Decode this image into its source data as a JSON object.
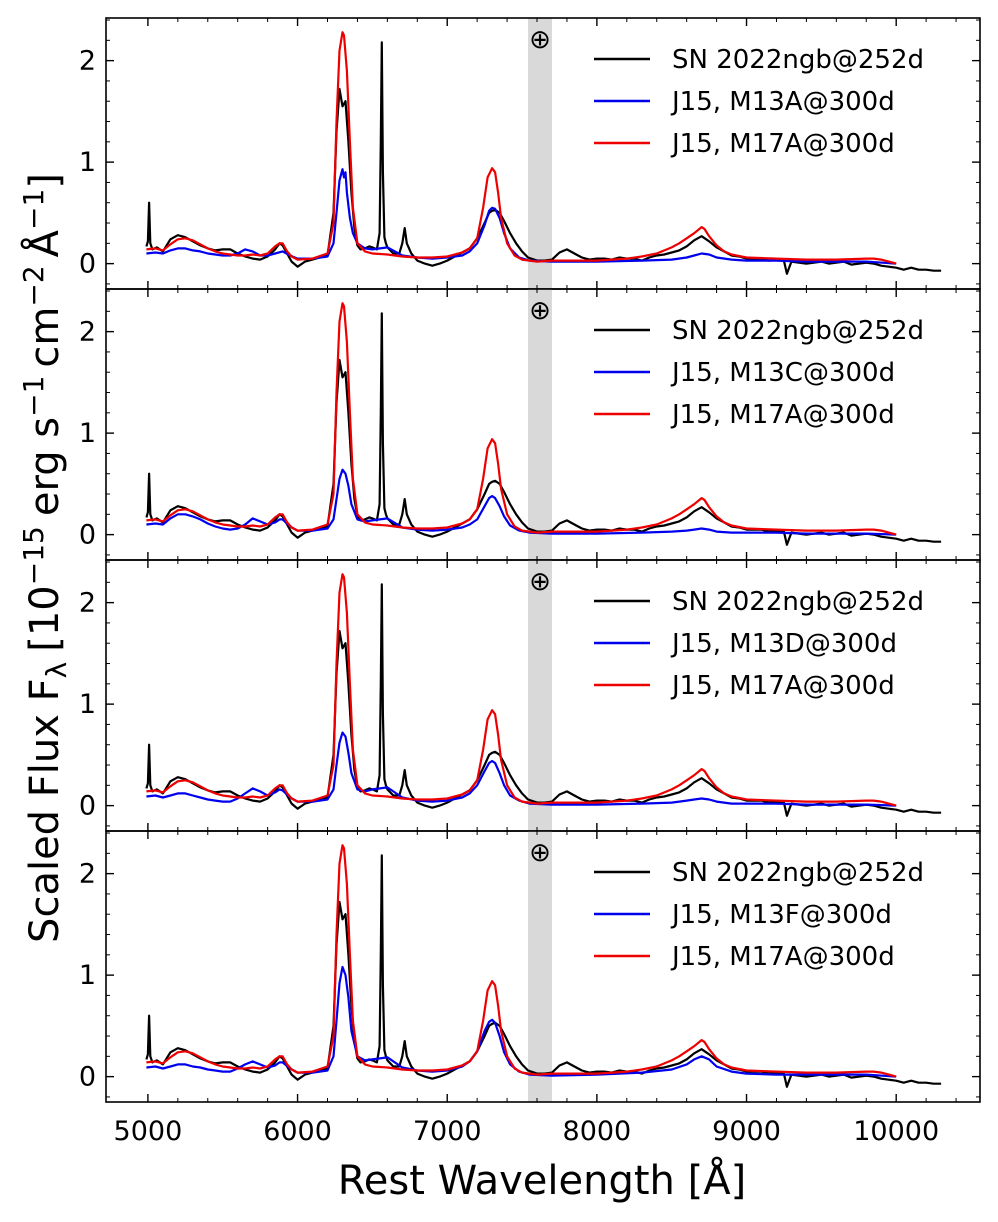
{
  "chart_data": {
    "type": "line",
    "xlabel": "Rest Wavelength [Å]",
    "ylabel_prefix": "Scaled Flux F",
    "ylabel_sub": "λ",
    "ylabel_units": "[10",
    "ylabel_exp1": "−15",
    "ylabel_erg": "erg s",
    "ylabel_exp2": "−1",
    "ylabel_cm": "cm",
    "ylabel_exp3": "−2",
    "ylabel_ang": "Å",
    "ylabel_exp4": "−1",
    "ylabel_close": "]",
    "xlim": [
      4720,
      10560
    ],
    "ylim": [
      -0.25,
      2.42
    ],
    "xticks": [
      5000,
      6000,
      7000,
      8000,
      9000,
      10000
    ],
    "xtick_labels": [
      "5000",
      "6000",
      "7000",
      "8000",
      "9000",
      "10000"
    ],
    "yticks": [
      0,
      1,
      2
    ],
    "ytick_labels": [
      "0",
      "1",
      "2"
    ],
    "telluric_band": [
      7540,
      7700
    ],
    "telluric_symbol": "⊕",
    "colors": {
      "observed": "#000000",
      "model_blue": "#0000ee",
      "model_red": "#ee0000",
      "band": "#d9d9d9"
    },
    "observed": {
      "name": "SN 2022ngb@252d",
      "x": [
        4990,
        5000,
        5008,
        5016,
        5030,
        5060,
        5100,
        5150,
        5200,
        5250,
        5300,
        5350,
        5400,
        5450,
        5500,
        5550,
        5600,
        5650,
        5700,
        5750,
        5800,
        5850,
        5880,
        5900,
        5930,
        5960,
        6000,
        6050,
        6100,
        6150,
        6200,
        6240,
        6260,
        6280,
        6300,
        6320,
        6340,
        6360,
        6380,
        6400,
        6420,
        6450,
        6480,
        6500,
        6530,
        6548,
        6556,
        6563,
        6570,
        6580,
        6590,
        6600,
        6640,
        6680,
        6700,
        6716,
        6730,
        6760,
        6800,
        6850,
        6900,
        6950,
        7000,
        7050,
        7100,
        7150,
        7200,
        7250,
        7280,
        7300,
        7320,
        7350,
        7380,
        7420,
        7460,
        7500,
        7540,
        7600,
        7650,
        7700,
        7750,
        7800,
        7850,
        7900,
        7950,
        8000,
        8050,
        8100,
        8150,
        8200,
        8250,
        8300,
        8350,
        8400,
        8450,
        8500,
        8550,
        8600,
        8650,
        8700,
        8750,
        8800,
        8850,
        8900,
        8950,
        9000,
        9050,
        9100,
        9150,
        9200,
        9250,
        9270,
        9300,
        9350,
        9400,
        9450,
        9500,
        9550,
        9600,
        9650,
        9700,
        9750,
        9800,
        9850,
        9900,
        9950,
        10000,
        10050,
        10100,
        10150,
        10200,
        10250,
        10300
      ],
      "y": [
        0.17,
        0.22,
        0.6,
        0.2,
        0.14,
        0.16,
        0.12,
        0.24,
        0.28,
        0.26,
        0.22,
        0.18,
        0.15,
        0.13,
        0.14,
        0.14,
        0.1,
        0.07,
        0.05,
        0.04,
        0.07,
        0.14,
        0.2,
        0.18,
        0.1,
        0.02,
        -0.03,
        0.02,
        0.04,
        0.06,
        0.08,
        0.5,
        1.3,
        1.72,
        1.55,
        1.6,
        1.2,
        0.7,
        0.35,
        0.18,
        0.14,
        0.15,
        0.17,
        0.16,
        0.14,
        0.3,
        1.2,
        2.18,
        0.9,
        0.26,
        0.2,
        0.16,
        0.1,
        0.1,
        0.2,
        0.35,
        0.2,
        0.1,
        0.03,
        0.0,
        -0.02,
        0.0,
        0.03,
        0.07,
        0.11,
        0.15,
        0.25,
        0.4,
        0.5,
        0.52,
        0.53,
        0.5,
        0.42,
        0.3,
        0.2,
        0.12,
        0.06,
        0.03,
        0.03,
        0.04,
        0.11,
        0.14,
        0.1,
        0.06,
        0.04,
        0.05,
        0.05,
        0.04,
        0.06,
        0.05,
        0.05,
        0.03,
        0.06,
        0.08,
        0.09,
        0.11,
        0.13,
        0.17,
        0.23,
        0.27,
        0.22,
        0.16,
        0.12,
        0.08,
        0.07,
        0.05,
        0.05,
        0.05,
        0.03,
        0.04,
        0.03,
        -0.1,
        0.02,
        0.01,
        0.0,
        0.01,
        0.02,
        0.0,
        0.01,
        0.02,
        -0.01,
        0.0,
        0.01,
        0.0,
        -0.02,
        -0.03,
        -0.04,
        -0.06,
        -0.04,
        -0.06,
        -0.06,
        -0.07,
        -0.07
      ]
    },
    "red_model": {
      "name": "J15, M17A@300d",
      "x": [
        4990,
        5050,
        5100,
        5150,
        5200,
        5250,
        5300,
        5350,
        5400,
        5450,
        5500,
        5550,
        5600,
        5650,
        5700,
        5750,
        5800,
        5850,
        5880,
        5900,
        5930,
        5960,
        6000,
        6100,
        6200,
        6240,
        6260,
        6280,
        6300,
        6310,
        6330,
        6350,
        6370,
        6400,
        6450,
        6500,
        6600,
        6700,
        6800,
        6900,
        7000,
        7100,
        7150,
        7200,
        7240,
        7270,
        7300,
        7320,
        7340,
        7360,
        7400,
        7450,
        7500,
        7600,
        7700,
        7800,
        7900,
        8000,
        8100,
        8200,
        8300,
        8400,
        8500,
        8550,
        8600,
        8650,
        8700,
        8720,
        8750,
        8800,
        8850,
        8900,
        9000,
        9200,
        9400,
        9600,
        9800,
        9850,
        9900,
        10000
      ],
      "y": [
        0.14,
        0.15,
        0.13,
        0.19,
        0.24,
        0.25,
        0.23,
        0.19,
        0.15,
        0.12,
        0.1,
        0.09,
        0.08,
        0.08,
        0.09,
        0.08,
        0.1,
        0.17,
        0.2,
        0.2,
        0.12,
        0.07,
        0.04,
        0.05,
        0.1,
        0.4,
        1.4,
        2.1,
        2.28,
        2.25,
        1.9,
        1.2,
        0.55,
        0.2,
        0.12,
        0.1,
        0.09,
        0.07,
        0.06,
        0.06,
        0.07,
        0.11,
        0.15,
        0.25,
        0.55,
        0.85,
        0.94,
        0.9,
        0.7,
        0.45,
        0.2,
        0.08,
        0.04,
        0.02,
        0.03,
        0.03,
        0.03,
        0.03,
        0.04,
        0.05,
        0.07,
        0.1,
        0.16,
        0.2,
        0.25,
        0.3,
        0.36,
        0.34,
        0.27,
        0.18,
        0.12,
        0.09,
        0.06,
        0.05,
        0.04,
        0.04,
        0.05,
        0.05,
        0.04,
        0.0
      ]
    },
    "panels": [
      {
        "legend": [
          "SN 2022ngb@252d",
          "J15, M13A@300d",
          "J15, M17A@300d"
        ],
        "blue_model": {
          "name": "J15, M13A@300d",
          "x": [
            4990,
            5050,
            5100,
            5150,
            5200,
            5250,
            5300,
            5350,
            5400,
            5450,
            5500,
            5550,
            5600,
            5650,
            5700,
            5750,
            5800,
            5850,
            5900,
            5950,
            6000,
            6100,
            6200,
            6240,
            6260,
            6280,
            6300,
            6310,
            6320,
            6330,
            6350,
            6370,
            6400,
            6450,
            6500,
            6550,
            6600,
            6700,
            6800,
            6900,
            7000,
            7100,
            7150,
            7200,
            7250,
            7280,
            7300,
            7320,
            7350,
            7380,
            7420,
            7480,
            7550,
            7700,
            8000,
            8300,
            8500,
            8600,
            8650,
            8700,
            8750,
            8800,
            8900,
            9000,
            9200,
            9400,
            9600,
            9800,
            10000
          ],
          "y": [
            0.1,
            0.11,
            0.1,
            0.13,
            0.15,
            0.15,
            0.13,
            0.12,
            0.1,
            0.09,
            0.08,
            0.08,
            0.1,
            0.14,
            0.12,
            0.08,
            0.08,
            0.1,
            0.12,
            0.08,
            0.05,
            0.05,
            0.07,
            0.2,
            0.5,
            0.82,
            0.93,
            0.85,
            0.9,
            0.7,
            0.45,
            0.3,
            0.2,
            0.15,
            0.14,
            0.15,
            0.16,
            0.08,
            0.06,
            0.05,
            0.06,
            0.08,
            0.12,
            0.2,
            0.38,
            0.52,
            0.55,
            0.54,
            0.45,
            0.3,
            0.15,
            0.06,
            0.03,
            0.02,
            0.02,
            0.03,
            0.04,
            0.06,
            0.08,
            0.1,
            0.09,
            0.06,
            0.04,
            0.03,
            0.03,
            0.02,
            0.02,
            0.02,
            0.0
          ]
        }
      },
      {
        "legend": [
          "SN 2022ngb@252d",
          "J15, M13C@300d",
          "J15, M17A@300d"
        ],
        "blue_model": {
          "name": "J15, M13C@300d",
          "x": [
            4990,
            5050,
            5100,
            5150,
            5200,
            5250,
            5300,
            5350,
            5400,
            5450,
            5500,
            5550,
            5600,
            5650,
            5700,
            5750,
            5800,
            5850,
            5880,
            5900,
            5950,
            6000,
            6100,
            6200,
            6240,
            6260,
            6280,
            6300,
            6320,
            6340,
            6360,
            6400,
            6450,
            6500,
            6550,
            6600,
            6700,
            6800,
            6900,
            7000,
            7100,
            7150,
            7200,
            7250,
            7280,
            7300,
            7320,
            7350,
            7380,
            7420,
            7480,
            7550,
            7700,
            8000,
            8300,
            8500,
            8600,
            8650,
            8700,
            8750,
            8800,
            8900,
            9000,
            9200,
            9400,
            9600,
            9800,
            10000
          ],
          "y": [
            0.1,
            0.11,
            0.1,
            0.16,
            0.2,
            0.2,
            0.18,
            0.15,
            0.11,
            0.08,
            0.06,
            0.05,
            0.06,
            0.1,
            0.16,
            0.13,
            0.1,
            0.12,
            0.15,
            0.15,
            0.08,
            0.04,
            0.04,
            0.06,
            0.15,
            0.35,
            0.55,
            0.64,
            0.6,
            0.48,
            0.3,
            0.15,
            0.13,
            0.14,
            0.15,
            0.16,
            0.07,
            0.05,
            0.04,
            0.05,
            0.07,
            0.1,
            0.15,
            0.28,
            0.36,
            0.38,
            0.36,
            0.28,
            0.18,
            0.09,
            0.04,
            0.02,
            0.01,
            0.01,
            0.02,
            0.03,
            0.04,
            0.05,
            0.06,
            0.05,
            0.03,
            0.02,
            0.02,
            0.02,
            0.01,
            0.01,
            0.01,
            0.0
          ]
        }
      },
      {
        "legend": [
          "SN 2022ngb@252d",
          "J15, M13D@300d",
          "J15, M17A@300d"
        ],
        "blue_model": {
          "name": "J15, M13D@300d",
          "x": [
            4990,
            5050,
            5100,
            5150,
            5200,
            5250,
            5300,
            5350,
            5400,
            5450,
            5500,
            5550,
            5600,
            5650,
            5700,
            5750,
            5800,
            5850,
            5880,
            5900,
            5950,
            6000,
            6100,
            6200,
            6240,
            6260,
            6280,
            6300,
            6320,
            6340,
            6360,
            6400,
            6450,
            6500,
            6550,
            6600,
            6700,
            6800,
            6900,
            7000,
            7100,
            7150,
            7200,
            7250,
            7280,
            7300,
            7320,
            7350,
            7380,
            7420,
            7480,
            7550,
            7700,
            8000,
            8300,
            8500,
            8600,
            8650,
            8700,
            8750,
            8800,
            8900,
            9000,
            9200,
            9400,
            9600,
            9800,
            10000
          ],
          "y": [
            0.09,
            0.1,
            0.08,
            0.1,
            0.12,
            0.12,
            0.1,
            0.08,
            0.06,
            0.05,
            0.04,
            0.04,
            0.07,
            0.12,
            0.17,
            0.14,
            0.1,
            0.13,
            0.16,
            0.15,
            0.08,
            0.04,
            0.04,
            0.06,
            0.16,
            0.4,
            0.62,
            0.72,
            0.68,
            0.52,
            0.32,
            0.16,
            0.14,
            0.16,
            0.17,
            0.18,
            0.08,
            0.05,
            0.04,
            0.05,
            0.08,
            0.12,
            0.2,
            0.34,
            0.42,
            0.44,
            0.42,
            0.32,
            0.2,
            0.1,
            0.05,
            0.02,
            0.01,
            0.01,
            0.02,
            0.03,
            0.05,
            0.06,
            0.07,
            0.06,
            0.04,
            0.02,
            0.02,
            0.02,
            0.01,
            0.01,
            0.01,
            0.0
          ]
        }
      },
      {
        "legend": [
          "SN 2022ngb@252d",
          "J15, M13F@300d",
          "J15, M17A@300d"
        ],
        "blue_model": {
          "name": "J15, M13F@300d",
          "x": [
            4990,
            5050,
            5100,
            5150,
            5200,
            5250,
            5300,
            5350,
            5400,
            5450,
            5500,
            5550,
            5600,
            5650,
            5700,
            5750,
            5800,
            5850,
            5880,
            5900,
            5950,
            6000,
            6100,
            6200,
            6240,
            6260,
            6280,
            6300,
            6320,
            6340,
            6360,
            6400,
            6450,
            6500,
            6550,
            6600,
            6700,
            6800,
            6900,
            7000,
            7100,
            7150,
            7200,
            7250,
            7280,
            7300,
            7320,
            7350,
            7380,
            7420,
            7480,
            7550,
            7700,
            8000,
            8300,
            8500,
            8600,
            8650,
            8700,
            8750,
            8800,
            8900,
            9000,
            9200,
            9400,
            9600,
            9800,
            10000
          ],
          "y": [
            0.09,
            0.1,
            0.08,
            0.1,
            0.12,
            0.12,
            0.1,
            0.09,
            0.07,
            0.06,
            0.05,
            0.05,
            0.08,
            0.12,
            0.15,
            0.12,
            0.09,
            0.11,
            0.14,
            0.14,
            0.08,
            0.04,
            0.04,
            0.06,
            0.2,
            0.55,
            0.92,
            1.08,
            1.0,
            0.78,
            0.45,
            0.2,
            0.16,
            0.17,
            0.18,
            0.19,
            0.09,
            0.06,
            0.05,
            0.06,
            0.1,
            0.15,
            0.25,
            0.45,
            0.54,
            0.56,
            0.53,
            0.4,
            0.24,
            0.12,
            0.05,
            0.02,
            0.01,
            0.02,
            0.04,
            0.07,
            0.12,
            0.17,
            0.2,
            0.17,
            0.1,
            0.05,
            0.03,
            0.02,
            0.02,
            0.02,
            0.02,
            0.0
          ]
        }
      }
    ]
  }
}
